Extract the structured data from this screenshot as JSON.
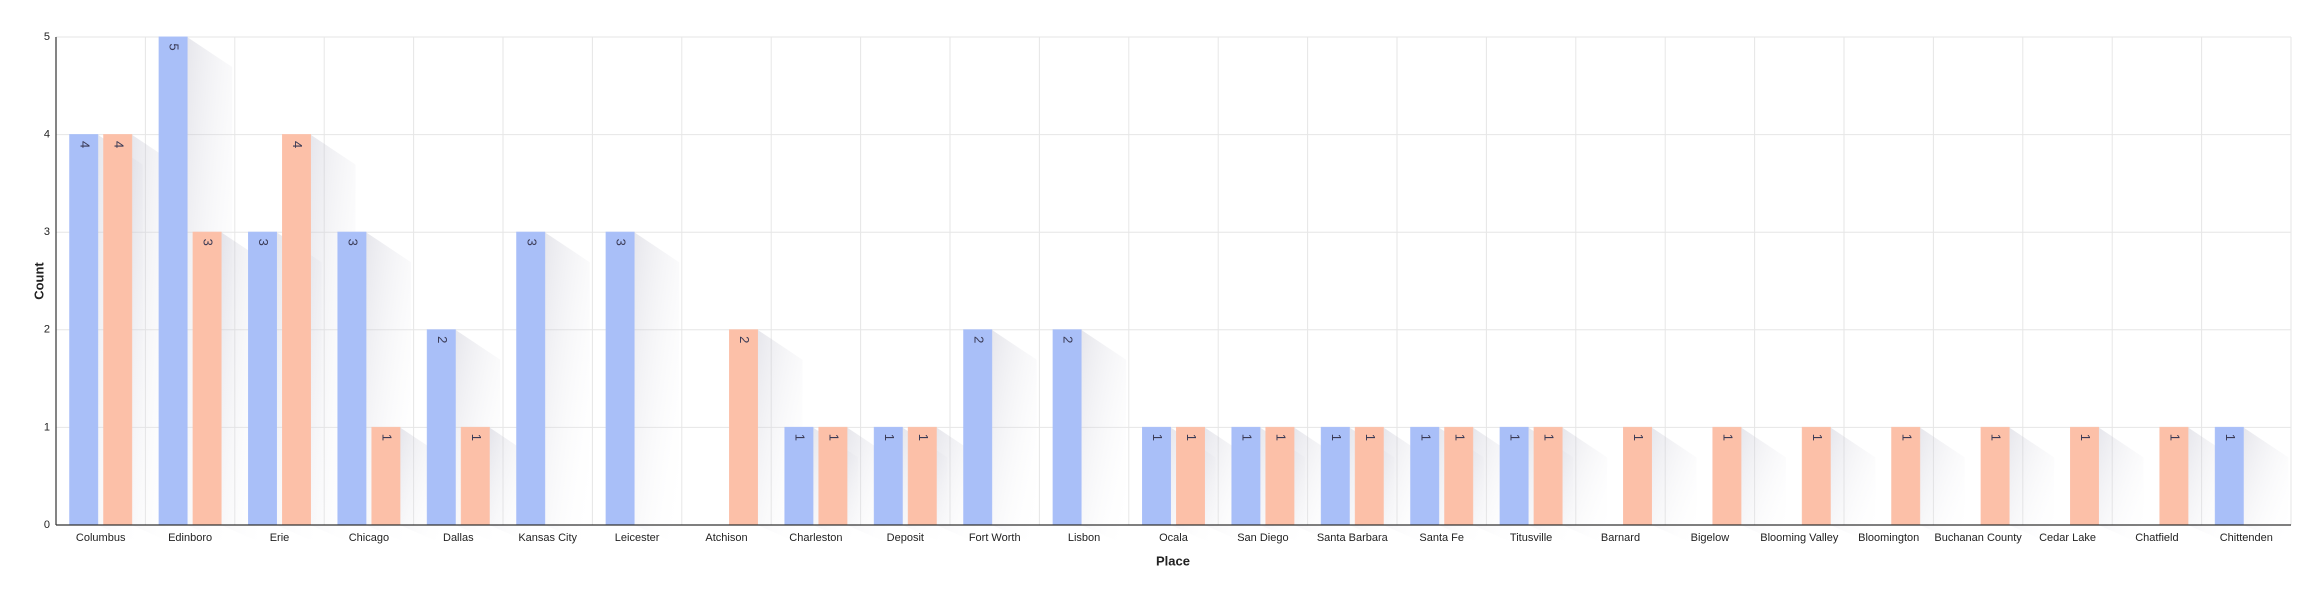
{
  "chart_data": {
    "type": "bar",
    "x_label": "Place",
    "y_label": "Count",
    "categories": [
      "Columbus",
      "Edinboro",
      "Erie",
      "Chicago",
      "Dallas",
      "Kansas City",
      "Leicester",
      "Atchison",
      "Charleston",
      "Deposit",
      "Fort Worth",
      "Lisbon",
      "Ocala",
      "San Diego",
      "Santa Barbara",
      "Santa Fe",
      "Titusville",
      "Barnard",
      "Bigelow",
      "Blooming Valley",
      "Bloomington",
      "Buchanan County",
      "Cedar Lake",
      "Chatfield",
      "Chittenden"
    ],
    "series": [
      {
        "color": "#a9bff8",
        "values": [
          4,
          5,
          3,
          3,
          2,
          3,
          3,
          null,
          1,
          1,
          2,
          2,
          1,
          1,
          1,
          1,
          1,
          null,
          null,
          null,
          null,
          null,
          null,
          null,
          1
        ]
      },
      {
        "color": "#fcc0a8",
        "values": [
          4,
          3,
          4,
          1,
          1,
          null,
          null,
          2,
          1,
          1,
          null,
          null,
          1,
          1,
          1,
          1,
          1,
          1,
          1,
          1,
          1,
          1,
          1,
          1,
          null
        ]
      }
    ],
    "ylim": [
      0,
      5
    ],
    "yticks": [
      0,
      1,
      2,
      3,
      4,
      5
    ],
    "grid": true
  }
}
